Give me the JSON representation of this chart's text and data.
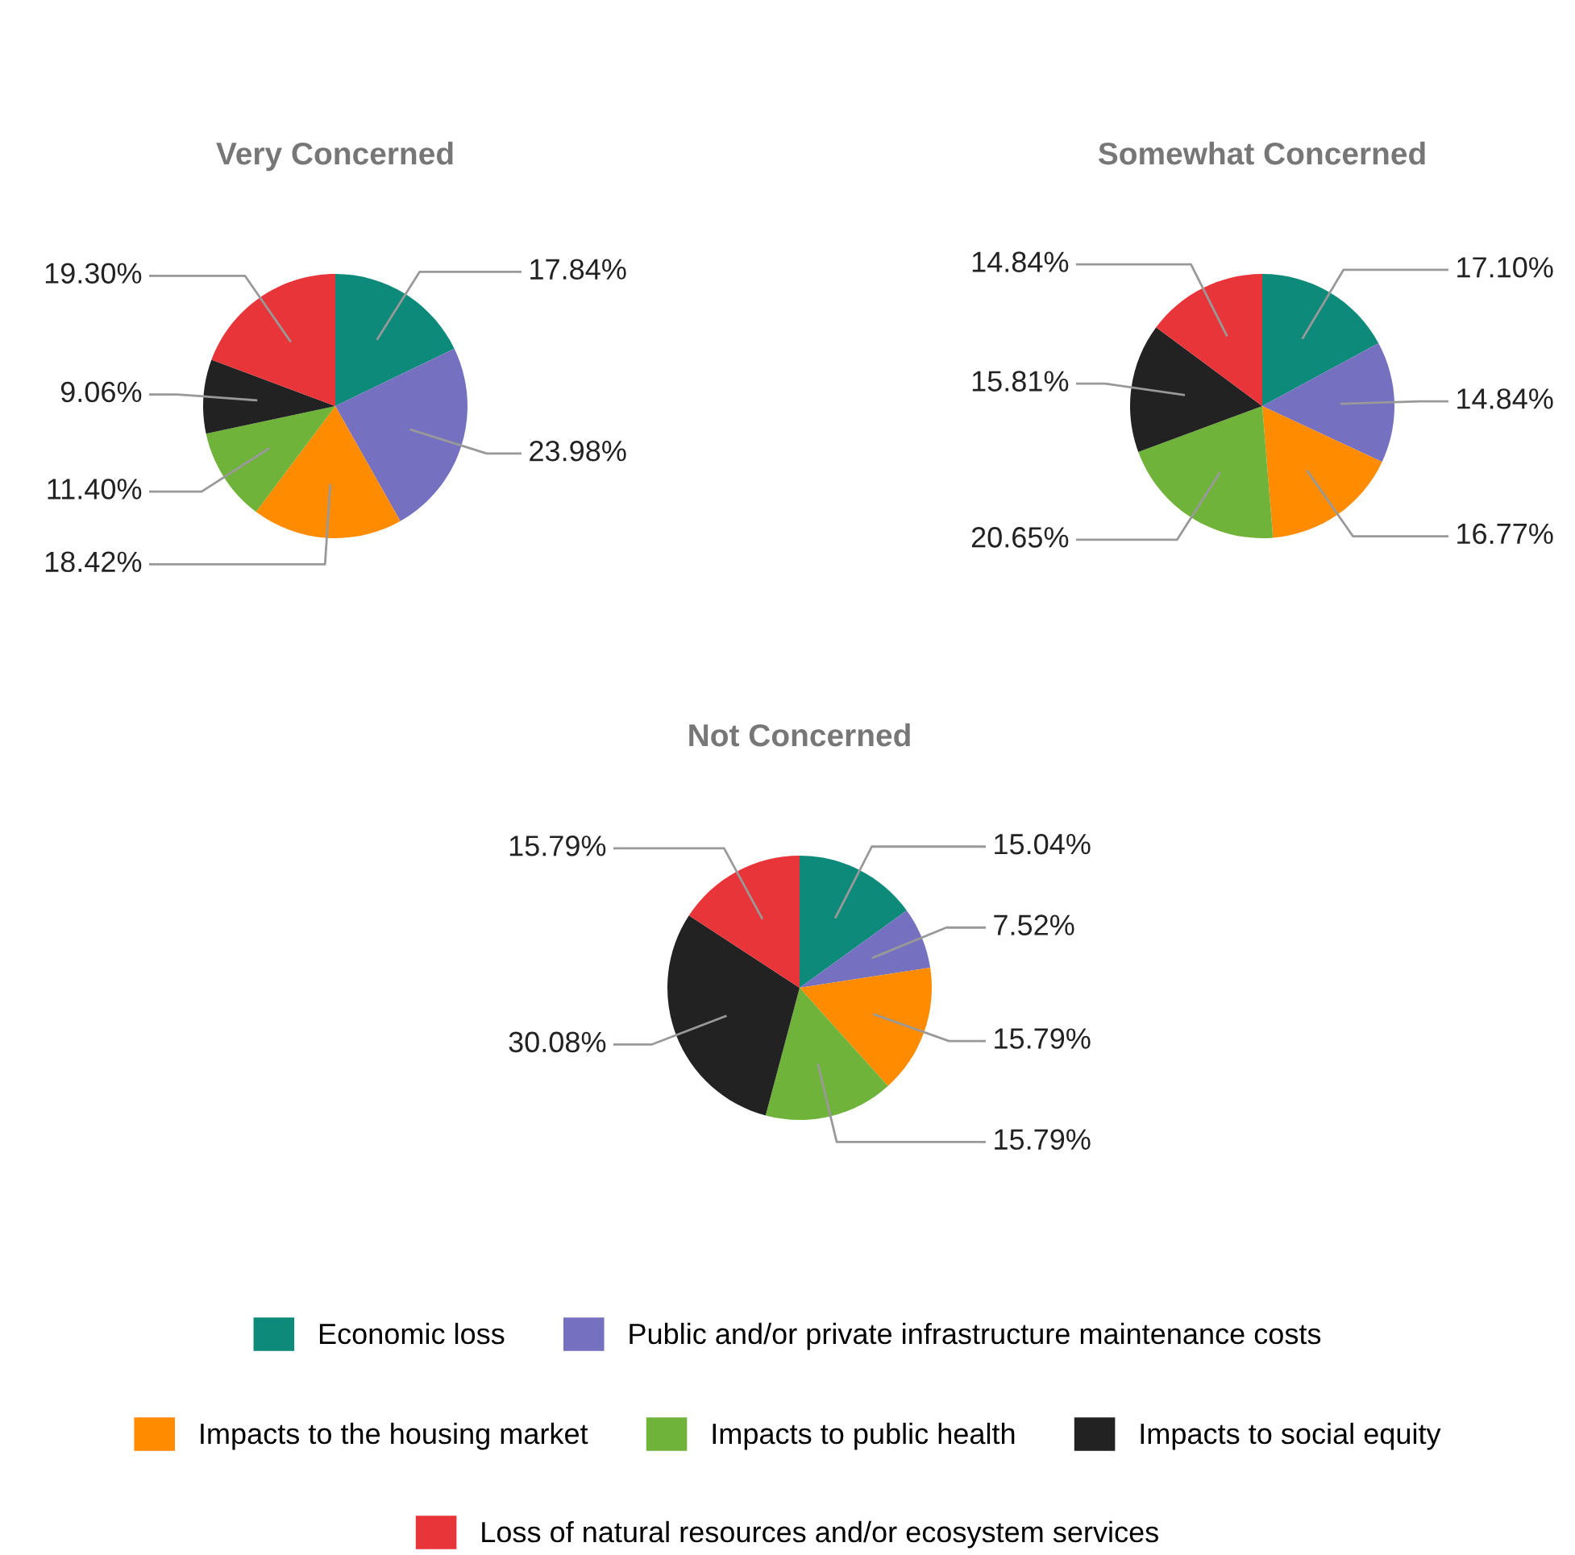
{
  "chart_data": [
    {
      "type": "pie",
      "title": "Very Concerned",
      "categories": [
        "Economic loss",
        "Public and/or private infrastructure maintenance costs",
        "Impacts to the housing market",
        "Impacts to public health",
        "Impacts to social equity",
        "Loss of natural resources and/or ecosystem services"
      ],
      "values": [
        17.84,
        23.98,
        18.42,
        11.4,
        9.06,
        19.3
      ],
      "value_labels": [
        "17.84%",
        "23.98%",
        "18.42%",
        "11.40%",
        "9.06%",
        "19.30%"
      ],
      "colors": [
        "#0e8a7a",
        "#7570c0",
        "#ff8c00",
        "#70b33a",
        "#222222",
        "#e8353a"
      ],
      "legend": "bottom"
    },
    {
      "type": "pie",
      "title": "Somewhat Concerned",
      "categories": [
        null,
        null,
        null,
        null,
        null,
        null
      ],
      "values": [
        17.1,
        14.84,
        16.77,
        20.65,
        15.81,
        14.84
      ],
      "value_labels": [
        "17.10%",
        "14.84%",
        "16.77%",
        "20.65%",
        "15.81%",
        "14.84%"
      ],
      "colors": [
        "#0e8a7a",
        "#7570c0",
        "#ff8c00",
        "#70b33a",
        "#222222",
        "#e8353a"
      ]
    },
    {
      "type": "pie",
      "title": "Not Concerned",
      "categories": [
        null,
        null,
        null,
        null,
        null,
        null
      ],
      "values": [
        15.04,
        7.52,
        15.79,
        15.79,
        30.08,
        15.79
      ],
      "value_labels": [
        "15.04%",
        "7.52%",
        "15.79%",
        "15.79%",
        "30.08%",
        "15.79%"
      ],
      "colors": [
        "#0e8a7a",
        "#7570c0",
        "#ff8c00",
        "#70b33a",
        "#222222",
        "#e8353a"
      ]
    }
  ]
}
